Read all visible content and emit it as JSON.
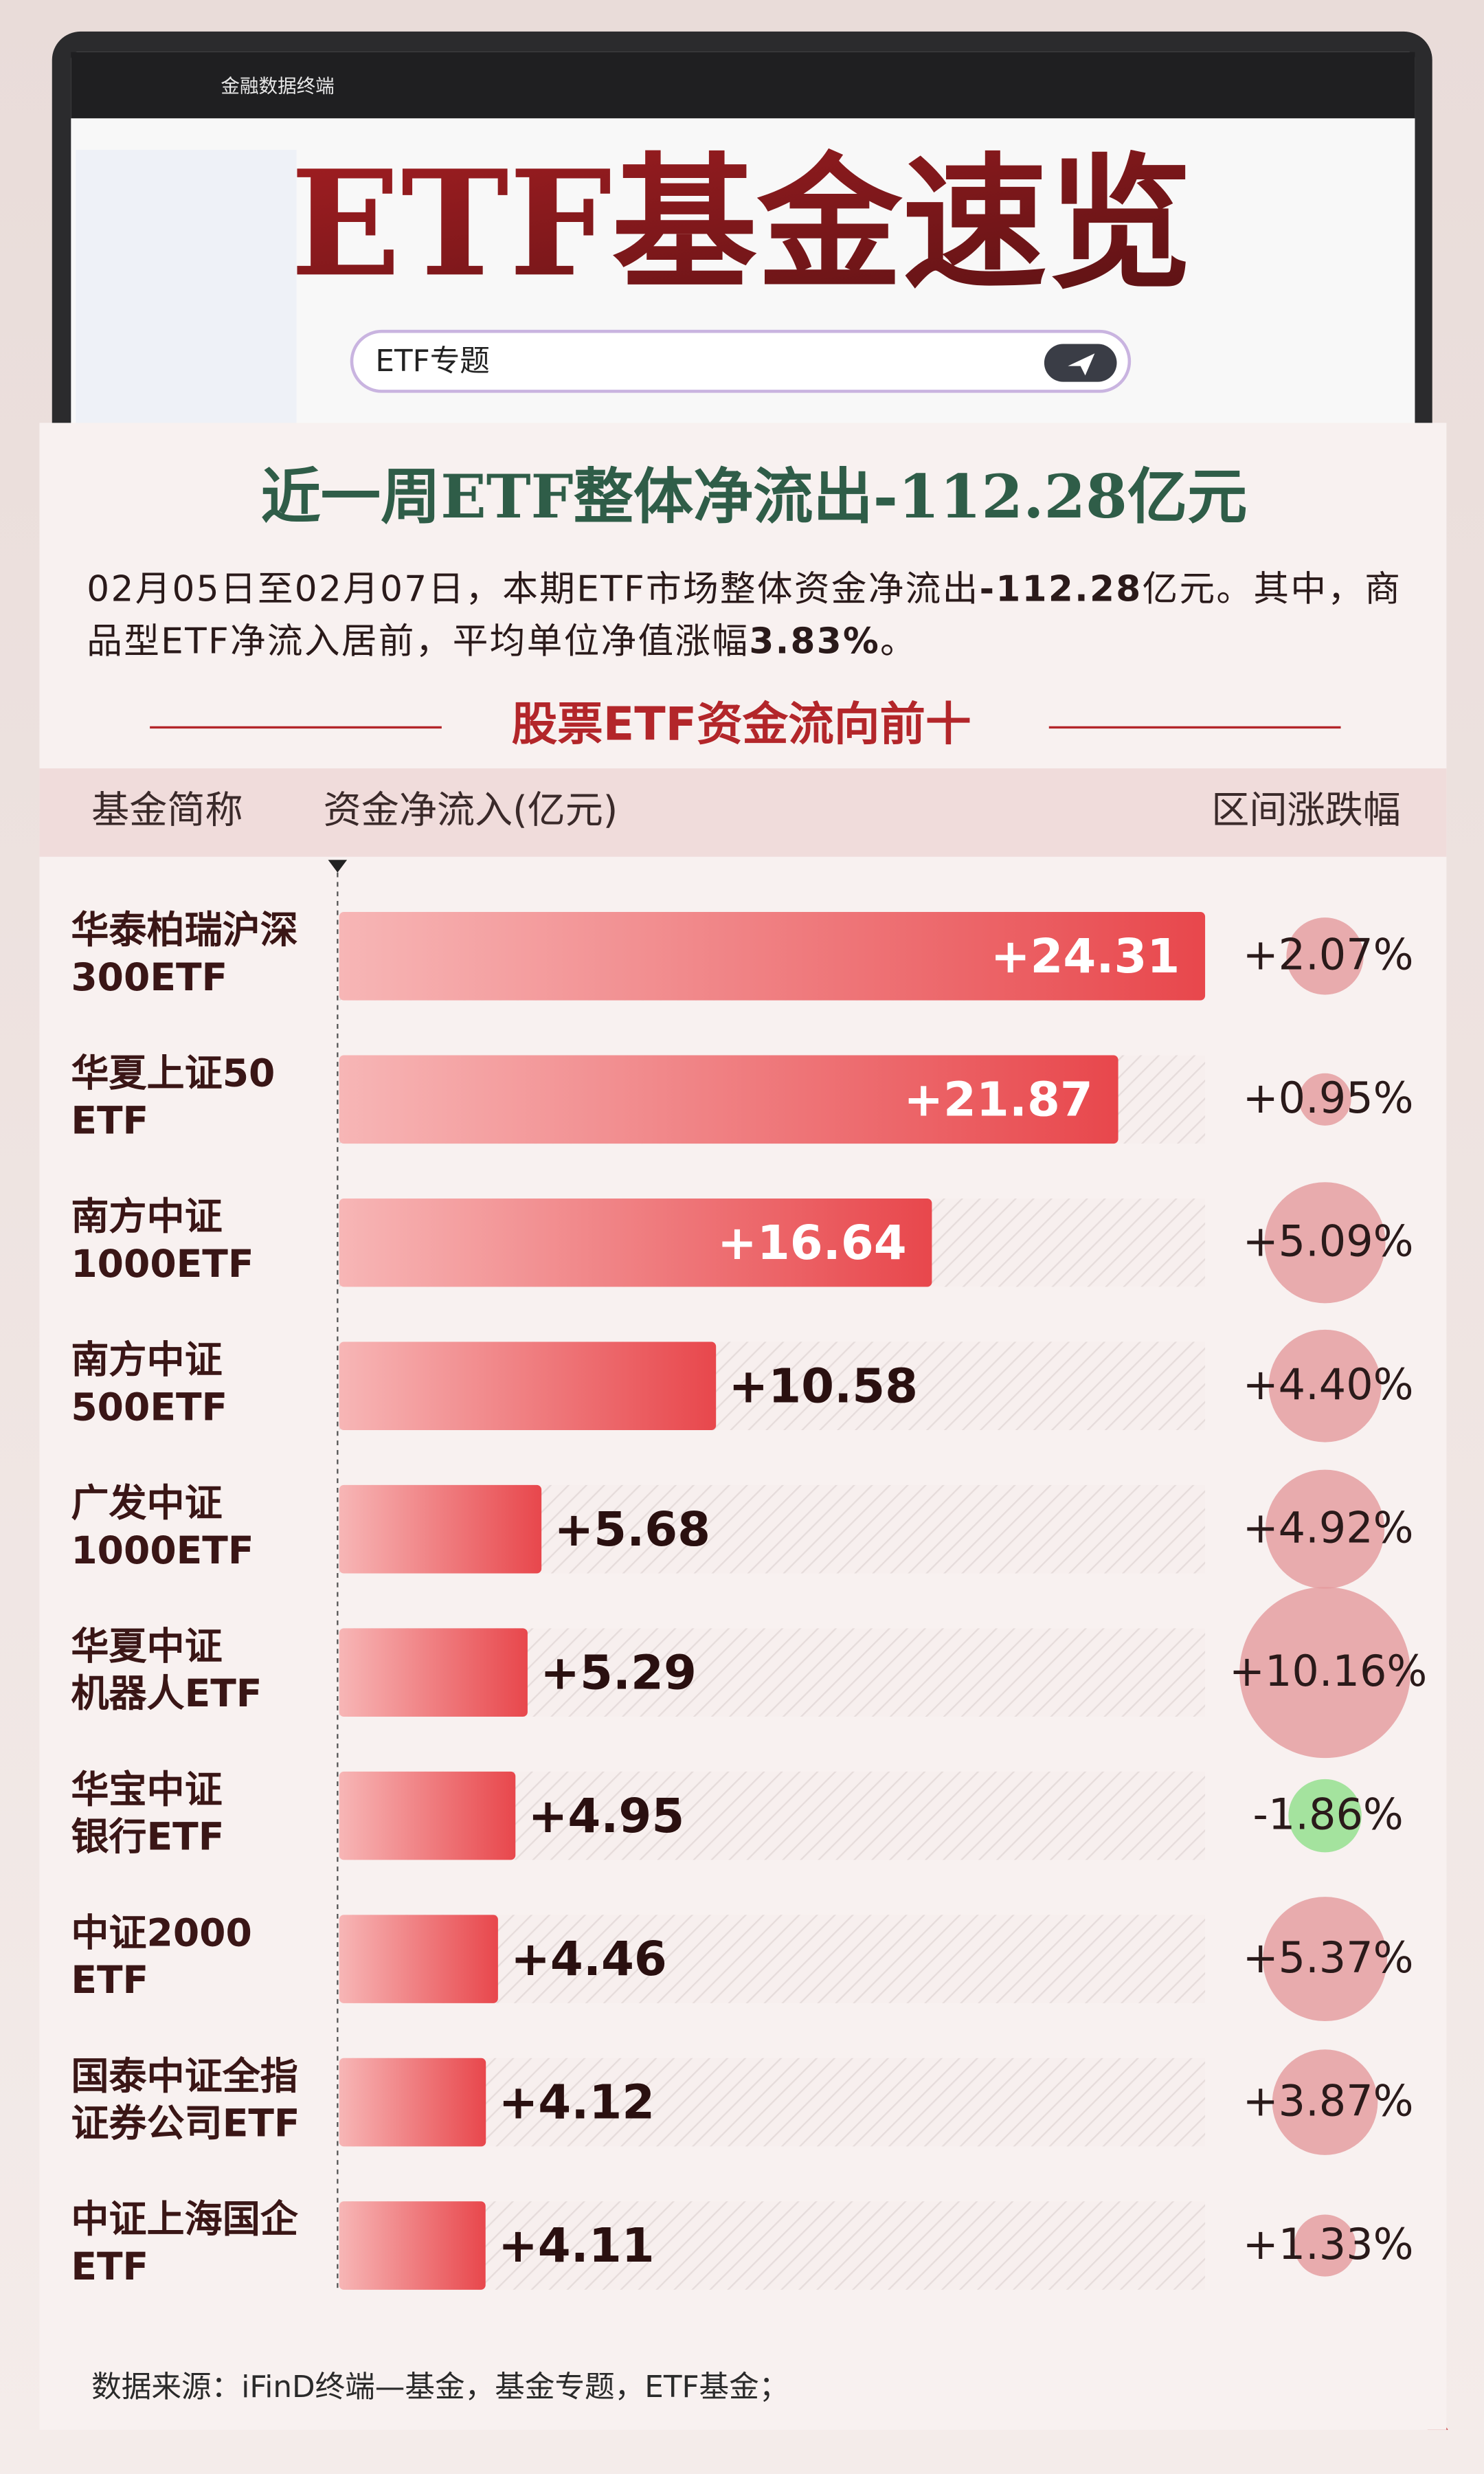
{
  "header": {
    "app_name": "金融数据终端",
    "title": "ETF基金速览",
    "search_text": "ETF专题"
  },
  "card": {
    "title": "近一周ETF整体净流出-112.28亿元",
    "intro": [
      {
        "text": "02月05日至02月07日，本期ETF市场整体资金净流出",
        "bold": false
      },
      {
        "text": "-112.28",
        "bold": true
      },
      {
        "text": "亿元。其中，商品型ETF净流入居前，平均单位净值涨幅",
        "bold": false
      },
      {
        "text": "3.83%",
        "bold": true
      },
      {
        "text": "。",
        "bold": false
      }
    ],
    "section_title": "股票ETF资金流向前十",
    "source": "数据来源：iFinD终端—基金，基金专题，ETF基金；"
  },
  "chart_data": {
    "type": "bar",
    "orientation": "horizontal",
    "columns": [
      "基金简称",
      "资金净流入(亿元)",
      "区间涨跌幅"
    ],
    "categories": [
      [
        "华泰柏瑞沪深",
        "300ETF"
      ],
      [
        "华夏上证50",
        "ETF"
      ],
      [
        "南方中证",
        "1000ETF"
      ],
      [
        "南方中证",
        "500ETF"
      ],
      [
        "广发中证",
        "1000ETF"
      ],
      [
        "华夏中证",
        "机器人ETF"
      ],
      [
        "华宝中证",
        "银行ETF"
      ],
      [
        "中证2000",
        "ETF"
      ],
      [
        "国泰中证全指",
        "证券公司ETF"
      ],
      [
        "中证上海国企",
        "ETF"
      ]
    ],
    "series": [
      {
        "name": "资金净流入(亿元)",
        "color": "#e8474c",
        "values": [
          24.31,
          21.87,
          16.64,
          10.58,
          5.68,
          5.29,
          4.95,
          4.46,
          4.12,
          4.11
        ],
        "value_labels": [
          "+24.31",
          "+21.87",
          "+16.64",
          "+10.58",
          "+5.68",
          "+5.29",
          "+4.95",
          "+4.46",
          "+4.12",
          "+4.11"
        ]
      },
      {
        "name": "区间涨跌幅",
        "color": "#e39a9c",
        "negative_color": "#8fe08a",
        "values": [
          2.07,
          0.95,
          5.09,
          4.4,
          4.92,
          10.16,
          -1.86,
          5.37,
          3.87,
          1.33
        ],
        "value_labels": [
          "+2.07%",
          "+0.95%",
          "+5.09%",
          "+4.40%",
          "+4.92%",
          "+10.16%",
          "-1.86%",
          "+5.37%",
          "+3.87%",
          "+1.33%"
        ]
      }
    ]
  }
}
